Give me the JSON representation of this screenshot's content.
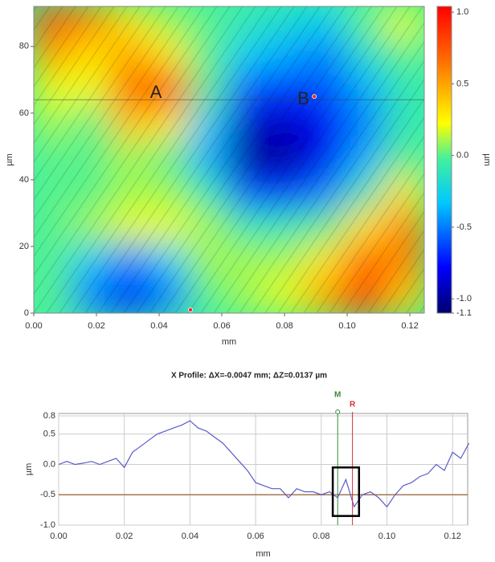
{
  "chart_data": [
    {
      "type": "surface",
      "x_label": "mm",
      "y_label": "µm",
      "colorbar_label": "µm",
      "xlim": [
        0,
        0.1246
      ],
      "ylim": [
        0,
        92
      ],
      "zlim": [
        -1.1,
        1.04
      ],
      "xticks": [
        {
          "value": 0,
          "label": "0.00"
        },
        {
          "value": 0.02,
          "label": "0.02"
        },
        {
          "value": 0.04,
          "label": "0.04"
        },
        {
          "value": 0.06,
          "label": "0.06"
        },
        {
          "value": 0.08,
          "label": "0.08"
        },
        {
          "value": 0.1,
          "label": "0.10"
        },
        {
          "value": 0.12,
          "label": "0.12"
        }
      ],
      "yticks": [
        0,
        20,
        40,
        60,
        80
      ],
      "zticks": [
        {
          "value": 1,
          "label": "1.0"
        },
        0.5,
        {
          "value": 0,
          "label": "0.0"
        },
        -0.5,
        {
          "value": -1,
          "label": "-1.0"
        },
        -1.1
      ],
      "z": [
        [
          0.8,
          0.6,
          0.3,
          0.1,
          0.0,
          -0.1,
          -0.2,
          -0.3,
          0.0,
          0.2
        ],
        [
          0.5,
          0.3,
          0.5,
          0.3,
          0.0,
          -0.3,
          -0.4,
          -0.5,
          -0.2,
          0.0
        ],
        [
          0.2,
          0.2,
          0.7,
          0.9,
          0.0,
          -0.6,
          -0.7,
          -0.6,
          -0.4,
          -0.1
        ],
        [
          0.1,
          0.0,
          0.4,
          0.3,
          -0.3,
          -0.9,
          -0.9,
          -0.8,
          -0.5,
          -0.1
        ],
        [
          0.0,
          0.0,
          0.1,
          0.0,
          -0.4,
          -1.0,
          -1.0,
          -0.8,
          -0.4,
          0.0
        ],
        [
          0.0,
          0.0,
          0.1,
          0.1,
          -0.1,
          -0.6,
          -0.7,
          -0.5,
          -0.1,
          0.3
        ],
        [
          0.0,
          0.1,
          0.2,
          0.2,
          0.1,
          -0.1,
          -0.1,
          0.0,
          0.3,
          0.6
        ],
        [
          0.0,
          -0.3,
          -0.5,
          -0.3,
          0.1,
          0.1,
          0.1,
          0.3,
          0.7,
          0.6
        ],
        [
          0.0,
          -0.5,
          -0.7,
          -0.5,
          0.0,
          0.1,
          0.2,
          0.5,
          0.9,
          0.4
        ]
      ],
      "profile_y": 64,
      "annotations": [
        {
          "text": "A",
          "x": 0.039,
          "y": 66
        },
        {
          "text": "B",
          "x": 0.086,
          "y": 64
        }
      ],
      "points": [
        {
          "x": 0.0895,
          "y": 65
        },
        {
          "x": 0.05,
          "y": 1
        }
      ]
    },
    {
      "type": "line",
      "title": "X Profile: ΔX=-0.0047 mm; ΔZ=0.0137 µm",
      "x_label": "mm",
      "y_label": "µm",
      "color": "#5a5ac8",
      "grid": true,
      "xlim": [
        0,
        0.1246
      ],
      "ylim": [
        -1.0,
        0.84
      ],
      "xticks": [
        {
          "value": 0,
          "label": "0.00"
        },
        {
          "value": 0.02,
          "label": "0.02"
        },
        {
          "value": 0.04,
          "label": "0.04"
        },
        {
          "value": 0.06,
          "label": "0.06"
        },
        {
          "value": 0.08,
          "label": "0.08"
        },
        {
          "value": 0.1,
          "label": "0.10"
        },
        {
          "value": 0.12,
          "label": "0.12"
        }
      ],
      "yticks": [
        0.8,
        0.5,
        {
          "value": 0,
          "label": "0.0"
        },
        -0.5,
        {
          "value": -1,
          "label": "-1.0"
        }
      ],
      "x": [
        0,
        0.0025,
        0.005,
        0.0075,
        0.01,
        0.0125,
        0.015,
        0.0175,
        0.02,
        0.0225,
        0.025,
        0.0275,
        0.03,
        0.0325,
        0.035,
        0.0375,
        0.04,
        0.0425,
        0.045,
        0.0475,
        0.05,
        0.0525,
        0.055,
        0.0575,
        0.06,
        0.0625,
        0.065,
        0.0675,
        0.07,
        0.0725,
        0.075,
        0.0775,
        0.08,
        0.0825,
        0.085,
        0.0875,
        0.09,
        0.0925,
        0.095,
        0.0975,
        0.1,
        0.1025,
        0.105,
        0.1075,
        0.11,
        0.1125,
        0.115,
        0.1175,
        0.12,
        0.1225,
        0.125
      ],
      "values": [
        0.0,
        0.05,
        0.0,
        0.02,
        0.05,
        0.0,
        0.05,
        0.1,
        -0.05,
        0.2,
        0.3,
        0.4,
        0.5,
        0.55,
        0.6,
        0.65,
        0.72,
        0.6,
        0.55,
        0.45,
        0.35,
        0.2,
        0.05,
        -0.1,
        -0.3,
        -0.35,
        -0.4,
        -0.4,
        -0.55,
        -0.4,
        -0.45,
        -0.45,
        -0.5,
        -0.45,
        -0.55,
        -0.25,
        -0.7,
        -0.5,
        -0.45,
        -0.55,
        -0.7,
        -0.5,
        -0.35,
        -0.3,
        -0.2,
        -0.15,
        0.0,
        -0.1,
        0.2,
        0.1,
        0.35
      ],
      "reference_line": -0.5,
      "cursors": [
        {
          "label": "M",
          "x": 0.085,
          "color": "#3a8a3a"
        },
        {
          "label": "R",
          "x": 0.0895,
          "color": "#cc3333"
        }
      ],
      "highlight": {
        "x": [
          0.0835,
          0.0915
        ],
        "y": [
          -0.85,
          -0.05
        ]
      }
    }
  ]
}
